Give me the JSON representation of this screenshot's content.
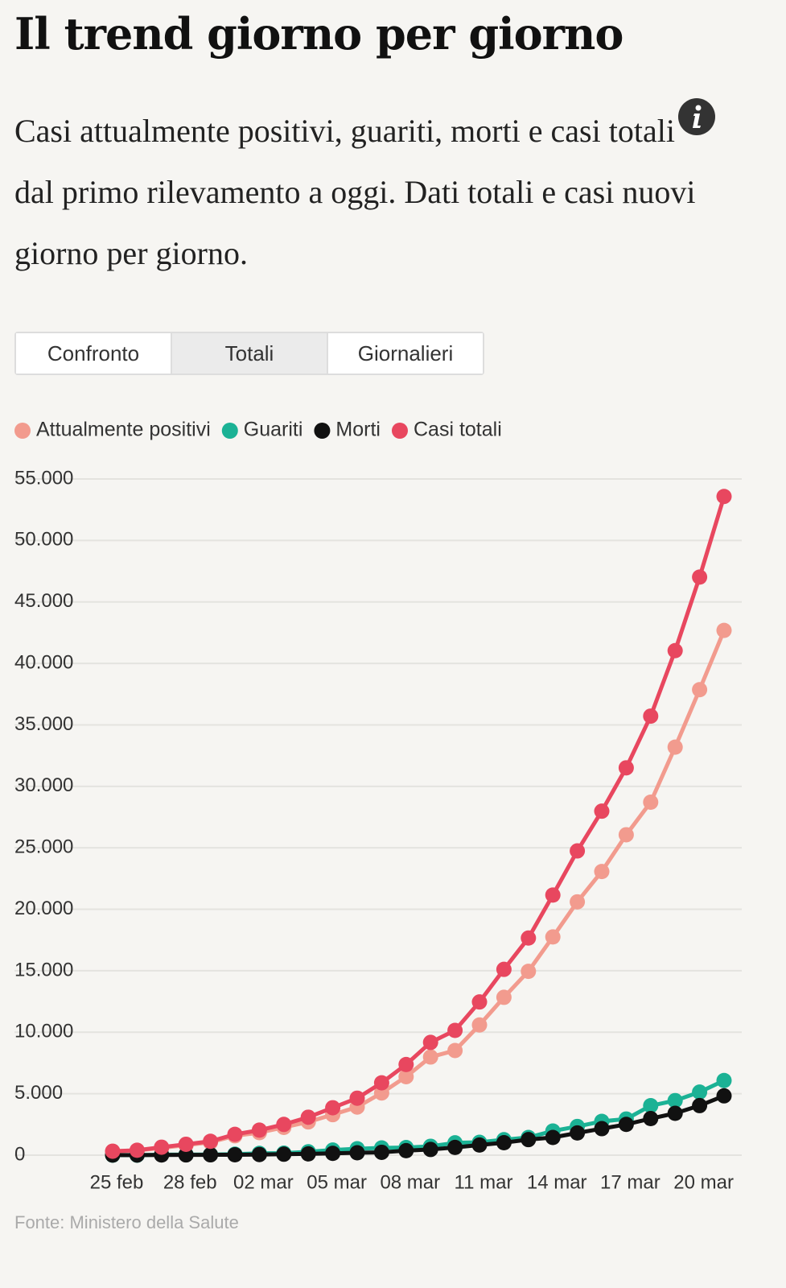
{
  "header": {
    "title": "Il trend giorno per giorno",
    "subtitle_start": "Casi attualmente positivi, guariti, morti e casi totali",
    "subtitle_end": "dal primo rilevamento a oggi. Dati totali e casi nuovi giorno per giorno."
  },
  "tabs": [
    {
      "label": "Confronto",
      "active": false
    },
    {
      "label": "Totali",
      "active": true
    },
    {
      "label": "Giornalieri",
      "active": false
    }
  ],
  "chart_data": {
    "type": "line",
    "categories": [
      "25 feb",
      null,
      null,
      "28 feb",
      null,
      null,
      "02 mar",
      null,
      null,
      "05 mar",
      null,
      null,
      "08 mar",
      null,
      null,
      "11 mar",
      null,
      null,
      "14 mar",
      null,
      null,
      "17 mar",
      null,
      null,
      "20 mar",
      null
    ],
    "series": [
      {
        "name": "Attualmente positivi",
        "color": "#f29b8e",
        "values": [
          311,
          385,
          588,
          821,
          1049,
          1577,
          1835,
          2263,
          2706,
          3296,
          3916,
          5061,
          6387,
          7985,
          8514,
          10590,
          12839,
          14955,
          17750,
          20603,
          23073,
          26062,
          28710,
          33190,
          37860,
          42681
        ]
      },
      {
        "name": "Guariti",
        "color": "#1bb295",
        "values": [
          1,
          3,
          45,
          46,
          50,
          83,
          149,
          160,
          276,
          414,
          523,
          589,
          622,
          724,
          1004,
          1045,
          1258,
          1439,
          1966,
          2335,
          2749,
          2941,
          4025,
          4440,
          5129,
          6072
        ]
      },
      {
        "name": "Morti",
        "color": "#111111",
        "values": [
          10,
          12,
          17,
          21,
          29,
          34,
          52,
          79,
          107,
          148,
          197,
          233,
          366,
          463,
          631,
          827,
          1016,
          1266,
          1441,
          1809,
          2158,
          2503,
          2978,
          3405,
          4032,
          4825
        ]
      },
      {
        "name": "Casi totali",
        "color": "#e8475f",
        "values": [
          322,
          400,
          650,
          888,
          1128,
          1694,
          2036,
          2502,
          3089,
          3858,
          4636,
          5883,
          7375,
          9172,
          10149,
          12462,
          15113,
          17660,
          21157,
          24747,
          27980,
          31506,
          35713,
          41035,
          47021,
          53578
        ]
      }
    ],
    "ylim": [
      0,
      55000
    ],
    "yticks": [
      0,
      {
        "value": 5000,
        "label": "5.000"
      },
      {
        "value": 10000,
        "label": "10.000"
      },
      {
        "value": 15000,
        "label": "15.000"
      },
      {
        "value": 20000,
        "label": "20.000"
      },
      {
        "value": 25000,
        "label": "25.000"
      },
      {
        "value": 30000,
        "label": "30.000"
      },
      {
        "value": 35000,
        "label": "35.000"
      },
      {
        "value": 40000,
        "label": "40.000"
      },
      {
        "value": 45000,
        "label": "45.000"
      },
      {
        "value": 50000,
        "label": "50.000"
      },
      {
        "value": 55000,
        "label": "55.000"
      }
    ],
    "grid": true,
    "source": "Fonte: Ministero della Salute"
  }
}
